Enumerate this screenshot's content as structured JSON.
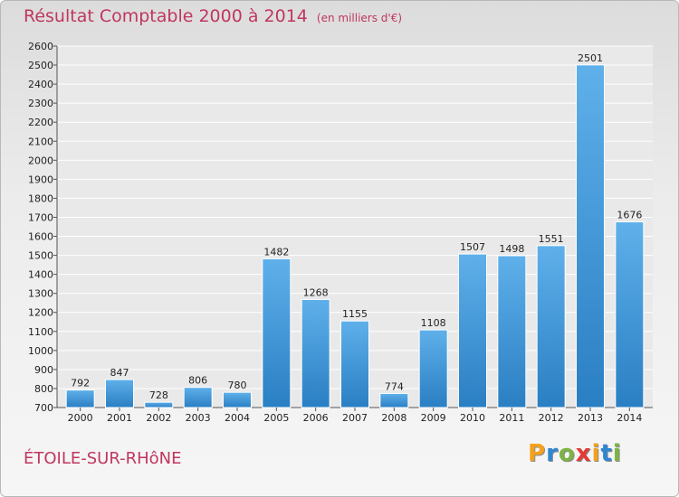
{
  "header": {
    "title": "Résultat Comptable 2000 à 2014",
    "unit": "(en milliers d'€)"
  },
  "footer": {
    "city": "ÉTOILE-SUR-RHôNE",
    "logo": "Proxiti"
  },
  "colors": {
    "title": "#c0365f",
    "bar_top": "#5fb0ea",
    "bar_bottom": "#2a7fc3"
  },
  "chart_data": {
    "type": "bar",
    "title": "Résultat Comptable 2000 à 2014",
    "xlabel": "",
    "ylabel": "",
    "ylim": [
      700,
      2600
    ],
    "ytick_step": 100,
    "grid": true,
    "categories": [
      "2000",
      "2001",
      "2002",
      "2003",
      "2004",
      "2005",
      "2006",
      "2007",
      "2008",
      "2009",
      "2010",
      "2011",
      "2012",
      "2013",
      "2014"
    ],
    "values": [
      792,
      847,
      728,
      806,
      780,
      1482,
      1268,
      1155,
      774,
      1108,
      1507,
      1498,
      1551,
      2501,
      1676
    ]
  }
}
